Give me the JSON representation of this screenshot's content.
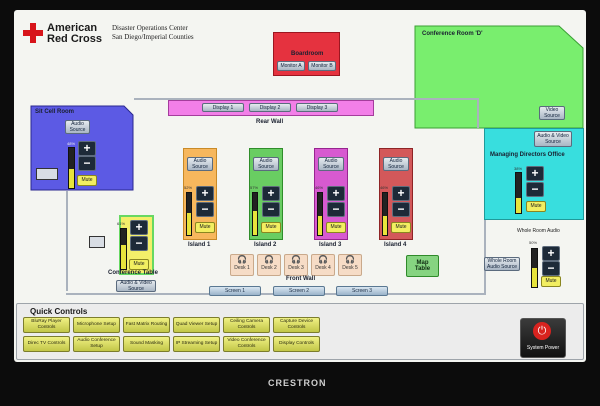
{
  "header": {
    "org_line1": "American",
    "org_line2": "Red Cross",
    "center_line1": "Disaster Operations Center",
    "center_line2": "San Diego/Imperial Counties",
    "brand_color": "#d7141a"
  },
  "boardroom": {
    "title": "Boardroom",
    "monitor_a": "Monitor A",
    "monitor_b": "Monitor B"
  },
  "conference_room_d": {
    "title": "Conference Room 'D'",
    "video_source": "Video Source"
  },
  "managing_directors": {
    "title": "Managing Directors Office",
    "source_btn": "Audio & Video Source",
    "volume_pct": "38%",
    "volume_level": 0.38,
    "mute": "Mute"
  },
  "sit_cell": {
    "title": "Sit Cell Room",
    "source_btn": "Audio Source",
    "volume_pct": "48%",
    "volume_level": 0.48,
    "mute": "Mute"
  },
  "rear_wall": {
    "title": "Rear Wall",
    "displays": [
      "Display 1",
      "Display 2",
      "Display 3"
    ]
  },
  "islands": [
    {
      "name": "Island 1",
      "source": "Audio Source",
      "pct": "52%",
      "level": 0.52,
      "mute": "Mute",
      "color": "#f7b75d",
      "border": "#c98a27"
    },
    {
      "name": "Island 2",
      "source": "Audio Source",
      "pct": "57%",
      "level": 0.57,
      "mute": "Mute",
      "color": "#69cd62",
      "border": "#2f8d2a"
    },
    {
      "name": "Island 3",
      "source": "Audio Source",
      "pct": "46%",
      "level": 0.46,
      "mute": "Mute",
      "color": "#d75ad0",
      "border": "#97248f"
    },
    {
      "name": "Island 4",
      "source": "Audio Source",
      "pct": "46%",
      "level": 0.46,
      "mute": "Mute",
      "color": "#d3585a",
      "border": "#8e2426"
    }
  ],
  "conference_table": {
    "title": "Conference Table",
    "source_btn": "Audio & Video Source",
    "volume_pct": "61%",
    "volume_level": 0.61,
    "mute": "Mute"
  },
  "front_wall": {
    "title": "Front Wall",
    "desks": [
      "Desk 1",
      "Desk 2",
      "Desk 3",
      "Desk 4",
      "Desk 5"
    ],
    "screens": [
      "Screen 1",
      "Screen 2",
      "Screen 3"
    ]
  },
  "map_table": {
    "label": "Map Table"
  },
  "whole_room": {
    "title": "Whole Room Audio",
    "source_btn": "Whole Room Audio Source",
    "volume_pct": "50%",
    "volume_level": 0.5,
    "mute": "Mute"
  },
  "quick_controls": {
    "title": "Quick Controls",
    "row1": [
      "BluRay Player Controls",
      "Microphone Setup",
      "Fast Matrix Routing",
      "Quad Viewer Setup",
      "Ceiling Camera Controls",
      "Capture Device Controls"
    ],
    "row2": [
      "Direc TV Controls",
      "Audio Conference Setup",
      "Sound Masking",
      "IP Streaming Setup",
      "Video Conference Controls",
      "Display Controls"
    ],
    "system_power": "System Power"
  },
  "bezel": {
    "brand": "CRESTRON"
  }
}
